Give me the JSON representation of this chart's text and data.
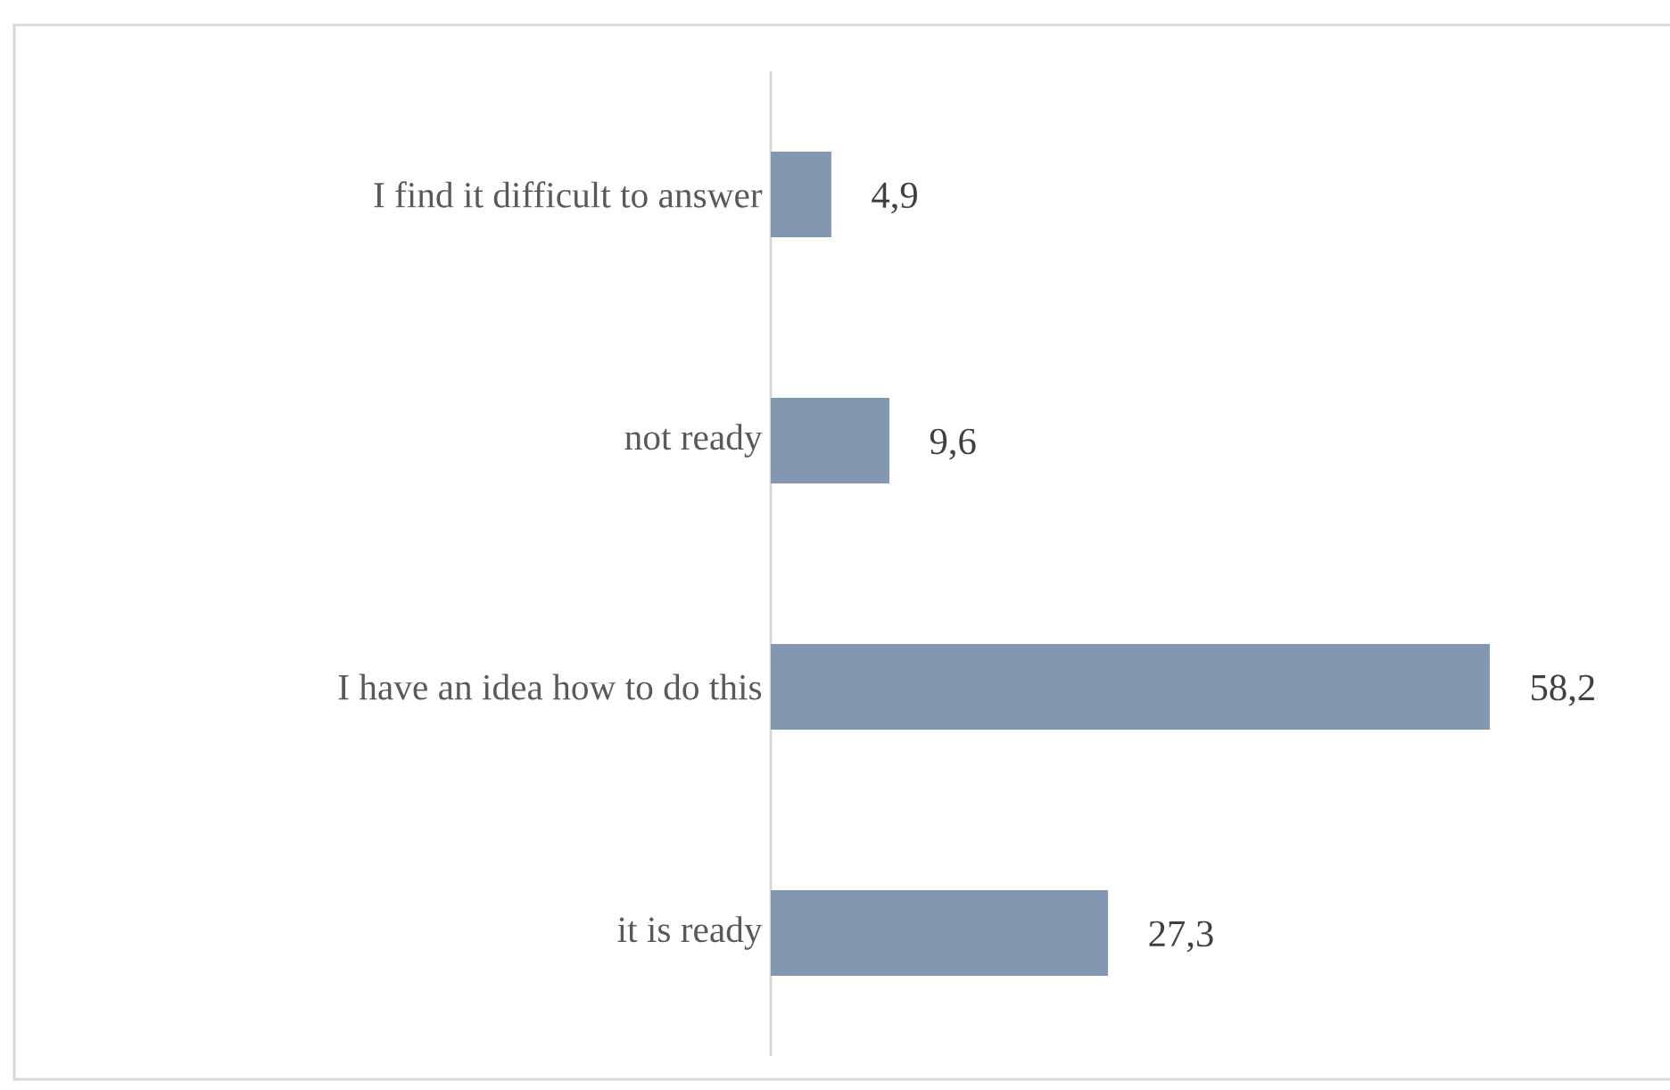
{
  "chart_data": {
    "type": "bar",
    "orientation": "horizontal",
    "categories": [
      "I find it difficult to answer",
      "not ready",
      "I have an idea how to do this",
      "it is ready"
    ],
    "values": [
      4.9,
      9.6,
      58.2,
      27.3
    ],
    "value_labels": [
      "4,9",
      "9,6",
      "58,2",
      "27,3"
    ],
    "color": "#8497b0"
  }
}
